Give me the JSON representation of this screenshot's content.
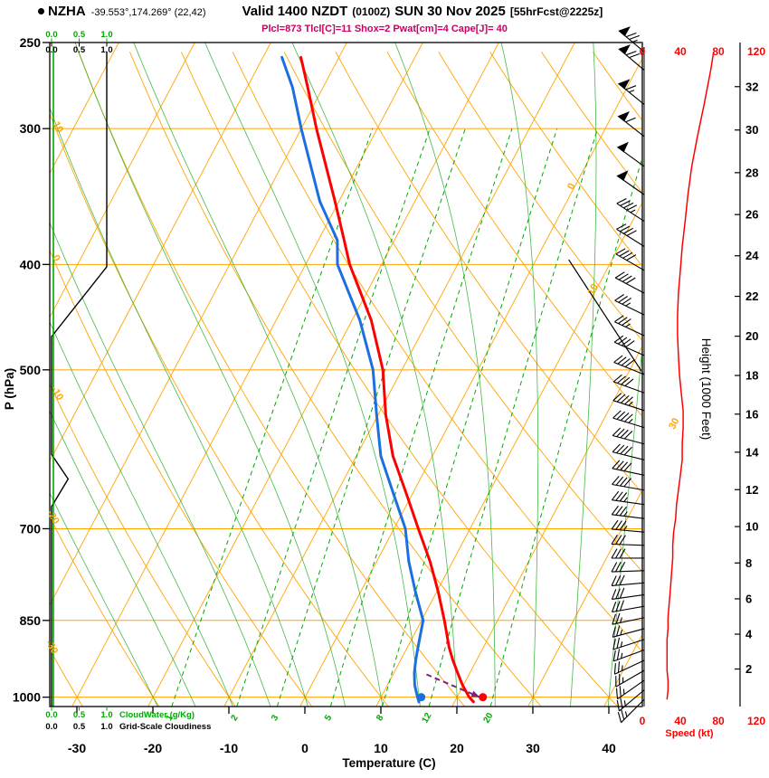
{
  "header": {
    "station": "NZHA",
    "coords": "-39.553°,174.269° (22,42)",
    "valid": "Valid 1400 NZDT",
    "valid_utc": "(0100Z)",
    "date": "SUN 30 Nov 2025",
    "forecast": "[55hrFcst@2225z]",
    "params": "Plcl=873 Tlcl[C]=11 Shox=2 Pwat[cm]=4 Cape[J]= 40"
  },
  "axes": {
    "pressure_label": "P (hPa)",
    "pressure_ticks": [
      250,
      300,
      400,
      500,
      700,
      850,
      1000
    ],
    "temp_label": "Temperature (C)",
    "temp_ticks": [
      -30,
      -20,
      -10,
      0,
      10,
      20,
      30,
      40
    ],
    "height_label": "Height (1000 Feet)",
    "height_ticks": [
      2,
      4,
      6,
      8,
      10,
      12,
      14,
      16,
      18,
      20,
      22,
      24,
      26,
      28,
      30,
      32
    ],
    "speed_label": "Speed (kt)",
    "speed_ticks": [
      0,
      40,
      80,
      120
    ],
    "scale_values": [
      "0.0",
      "0.5",
      "1.0"
    ],
    "cloudwater_label": "CloudWater (g/Kg)",
    "cloudiness_label": "Grid-Scale Cloudiness"
  },
  "colors": {
    "grid": "#FFA500",
    "mixing": "#00AA00",
    "moist": "#33B133",
    "temperature": "#FF0000",
    "dewpoint": "#1B6FE0",
    "wind": "#000000",
    "speed": "#FF0000",
    "cloudwater": "#00AA00",
    "cloudiness": "#000000",
    "params": "#C80064",
    "arrow": "#7B2382"
  },
  "chart_data": {
    "type": "line",
    "subtype": "skew-t log-p sounding",
    "title": "NZHA sounding valid 1400 NZDT (0100Z) SUN 30 Nov 2025",
    "pressure_range": [
      250,
      1020
    ],
    "temp_axis_range": [
      -40,
      40
    ],
    "temperature": [
      [
        1010,
        22.5
      ],
      [
        1000,
        21.6
      ],
      [
        975,
        19.9
      ],
      [
        950,
        18.4
      ],
      [
        925,
        16.9
      ],
      [
        900,
        15.5
      ],
      [
        850,
        13.0
      ],
      [
        800,
        10.2
      ],
      [
        750,
        7.0
      ],
      [
        700,
        3.2
      ],
      [
        650,
        -0.8
      ],
      [
        600,
        -5.2
      ],
      [
        550,
        -9.0
      ],
      [
        500,
        -12.5
      ],
      [
        450,
        -17.5
      ],
      [
        400,
        -24.2
      ],
      [
        380,
        -26.6
      ],
      [
        350,
        -30.5
      ],
      [
        300,
        -38.0
      ],
      [
        275,
        -42.0
      ],
      [
        258,
        -45.0
      ]
    ],
    "dewpoint": [
      [
        1010,
        15.3
      ],
      [
        1000,
        14.8
      ],
      [
        975,
        13.6
      ],
      [
        950,
        12.7
      ],
      [
        925,
        12.0
      ],
      [
        900,
        11.4
      ],
      [
        850,
        10.2
      ],
      [
        800,
        7.2
      ],
      [
        750,
        4.2
      ],
      [
        700,
        1.5
      ],
      [
        650,
        -2.5
      ],
      [
        600,
        -6.8
      ],
      [
        550,
        -10.2
      ],
      [
        500,
        -13.8
      ],
      [
        450,
        -19.0
      ],
      [
        400,
        -25.8
      ],
      [
        380,
        -27.5
      ],
      [
        350,
        -32.5
      ],
      [
        300,
        -40.0
      ],
      [
        275,
        -44.0
      ],
      [
        258,
        -47.5
      ]
    ],
    "wind_barbs": [
      [
        1005,
        26,
        225
      ],
      [
        985,
        27,
        230
      ],
      [
        965,
        27,
        235
      ],
      [
        945,
        26,
        240
      ],
      [
        925,
        26,
        245
      ],
      [
        905,
        26,
        250
      ],
      [
        885,
        26,
        252
      ],
      [
        865,
        27,
        255
      ],
      [
        845,
        27,
        258
      ],
      [
        825,
        28,
        260
      ],
      [
        805,
        29,
        262
      ],
      [
        785,
        30,
        265
      ],
      [
        765,
        31,
        268
      ],
      [
        745,
        32,
        270
      ],
      [
        725,
        32,
        272
      ],
      [
        705,
        33,
        275
      ],
      [
        685,
        35,
        277
      ],
      [
        665,
        36,
        278
      ],
      [
        645,
        38,
        280
      ],
      [
        625,
        40,
        282
      ],
      [
        605,
        42,
        284
      ],
      [
        585,
        42,
        285
      ],
      [
        565,
        43,
        287
      ],
      [
        545,
        43,
        288
      ],
      [
        525,
        41,
        290
      ],
      [
        505,
        39,
        292
      ],
      [
        485,
        38,
        294
      ],
      [
        465,
        37,
        295
      ],
      [
        445,
        37,
        296
      ],
      [
        425,
        38,
        298
      ],
      [
        405,
        40,
        300
      ],
      [
        385,
        42,
        302
      ],
      [
        365,
        45,
        303
      ],
      [
        345,
        48,
        305
      ],
      [
        325,
        52,
        306
      ],
      [
        305,
        58,
        308
      ],
      [
        285,
        65,
        309
      ],
      [
        265,
        72,
        310
      ],
      [
        255,
        75,
        310
      ]
    ],
    "cloudiness_profile": [
      [
        255,
        1.0
      ],
      [
        402,
        1.0
      ],
      [
        466,
        0
      ],
      [
        598,
        0
      ],
      [
        630,
        0.3
      ],
      [
        668,
        0
      ],
      [
        1020,
        0
      ]
    ],
    "cloudwater_profile": [
      [
        252,
        0
      ],
      [
        1020,
        0
      ]
    ],
    "markers": {
      "surface_temperature": [
        1000,
        23.4
      ],
      "surface_dewpoint": [
        1000,
        15.3
      ]
    },
    "parcel_arrow": {
      "from": [
        953,
        14.4
      ],
      "to": [
        1000,
        23.0
      ]
    },
    "aux_line": {
      "from": [
        396,
        4.3
      ],
      "to": [
        504,
        22.0
      ]
    },
    "isotherm_label_positions": [
      [
        340,
        0
      ],
      [
        423,
        10
      ],
      [
        562,
        30
      ]
    ],
    "dry_adiabat_label_positions": [
      [
        300,
        10
      ],
      [
        396,
        0
      ],
      [
        527,
        -10
      ],
      [
        685,
        -20
      ],
      [
        902,
        -30
      ]
    ],
    "mixing_ratio_values": [
      1,
      2,
      3,
      5,
      8,
      12,
      20
    ],
    "isotherm_range": [
      -120,
      40,
      10
    ],
    "dry_adiabat_range": [
      -40,
      200,
      10
    ],
    "moist_adiabat_range": [
      -20,
      40,
      5
    ]
  }
}
